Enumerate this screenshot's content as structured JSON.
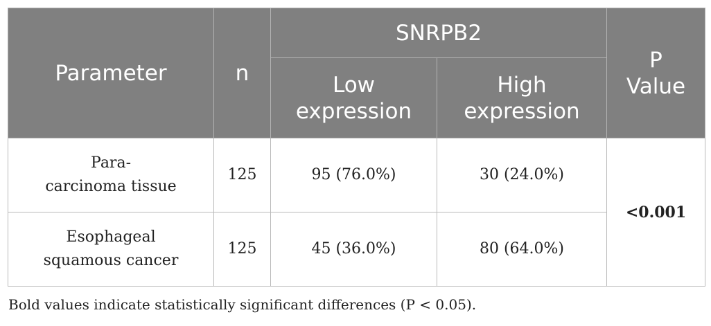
{
  "table": {
    "header": {
      "parameter": "Parameter",
      "n": "n",
      "group": "SNRPB2",
      "low_line1": "Low",
      "low_line2": "expression",
      "high_line1": "High",
      "high_line2": "expression",
      "p_line1": "P",
      "p_line2": "Value"
    },
    "rows": [
      {
        "parameter_line1": "Para-",
        "parameter_line2": "carcinoma tissue",
        "n": "125",
        "low": "95 (76.0%)",
        "high": "30 (24.0%)"
      },
      {
        "parameter_line1": "Esophageal",
        "parameter_line2": "squamous cancer",
        "n": "125",
        "low": "45 (36.0%)",
        "high": "80 (64.0%)"
      }
    ],
    "p_value": "<0.001"
  },
  "footnote": "Bold values indicate statistically significant differences (P < 0.05)."
}
